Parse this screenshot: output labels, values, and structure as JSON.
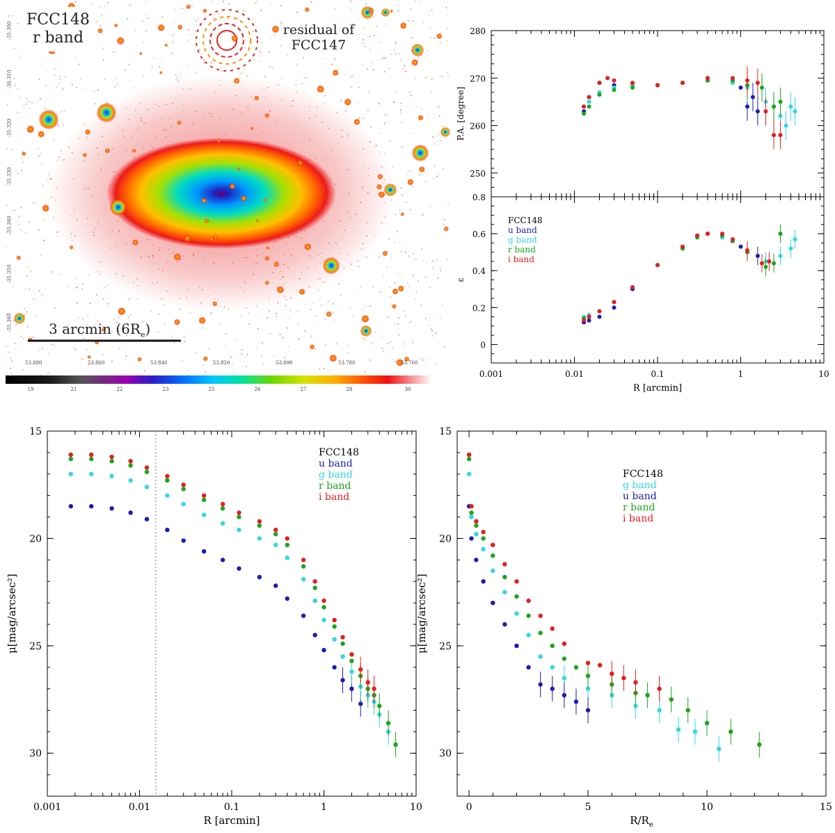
{
  "image_panel": {
    "galaxy_label_line1": "FCC148",
    "galaxy_label_line2": "r band",
    "residual_line1": "residual of",
    "residual_line2": "FCC147",
    "scale_bar_text": "3 arcmin (6R",
    "scale_bar_sub": "e",
    "scale_bar_close": ")",
    "ra_ticks": [
      "53.880",
      "53.860",
      "53.840",
      "53.820",
      "53.800",
      "53.780",
      "53.760"
    ],
    "dec_ticks": [
      "-35.300",
      "-35.310",
      "-35.320",
      "-35.330",
      "-35.340",
      "-35.350",
      "-35.360"
    ],
    "colorbar_ticks": [
      "19",
      "21",
      "22",
      "23",
      "25",
      "26",
      "27",
      "28",
      "30"
    ]
  },
  "chart_data": [
    {
      "type": "scatter",
      "name": "position-angle",
      "title": "",
      "xlabel": "",
      "ylabel": "P.A. [degree]",
      "xscale": "log",
      "xlim": [
        0.001,
        10
      ],
      "ylim": [
        245,
        280
      ],
      "yticks": [
        "250",
        "260",
        "270",
        "280"
      ],
      "series": [
        {
          "name": "u band",
          "color": "#1b1bb5",
          "x": [
            0.013,
            0.015,
            0.02,
            0.03,
            0.05,
            0.1,
            0.2,
            0.4,
            0.8,
            1.0,
            1.2,
            1.4,
            1.6
          ],
          "y": [
            263,
            266,
            269,
            268.5,
            268.5,
            268.5,
            269,
            269.5,
            269.5,
            268,
            264,
            266,
            263
          ]
        },
        {
          "name": "g band",
          "color": "#30d8e0",
          "x": [
            0.013,
            0.015,
            0.02,
            0.03,
            0.05,
            0.1,
            0.2,
            0.4,
            0.8,
            1.2,
            2.0,
            2.5,
            3.0,
            3.5,
            4.0,
            4.5
          ],
          "y": [
            264,
            265,
            267,
            268,
            268.5,
            268.5,
            269,
            269.5,
            269,
            268,
            265,
            264,
            262,
            260,
            264,
            263
          ]
        },
        {
          "name": "r band",
          "color": "#1aa61a",
          "x": [
            0.013,
            0.015,
            0.02,
            0.03,
            0.05,
            0.1,
            0.2,
            0.4,
            0.8,
            1.2,
            1.8,
            2.5,
            3.0
          ],
          "y": [
            262.5,
            264,
            266.5,
            267.5,
            268,
            268.5,
            269,
            269.5,
            269.5,
            268.5,
            268,
            264,
            265
          ]
        },
        {
          "name": "i band",
          "color": "#e81c1c",
          "x": [
            0.013,
            0.015,
            0.02,
            0.025,
            0.03,
            0.05,
            0.1,
            0.2,
            0.4,
            0.8,
            1.2,
            1.6,
            2.0,
            2.5,
            3.0
          ],
          "y": [
            264,
            266,
            269,
            270,
            269.5,
            269,
            268.5,
            269,
            270,
            270,
            269.5,
            269,
            263,
            258,
            258
          ]
        }
      ]
    },
    {
      "type": "scatter",
      "name": "ellipticity",
      "title": "",
      "xlabel": "R [arcmin]",
      "ylabel": "ε",
      "xscale": "log",
      "xlim": [
        0.001,
        10
      ],
      "ylim": [
        -0.1,
        0.8
      ],
      "xticks": [
        "0.001",
        "0.01",
        "0.1",
        "1",
        "10"
      ],
      "yticks": [
        "0",
        "0.2",
        "0.4",
        "0.6",
        "0.8"
      ],
      "legend": {
        "title": "FCC148",
        "entries": [
          "u band",
          "g band",
          "r band",
          "i band"
        ],
        "position": "left-middle"
      },
      "series": [
        {
          "name": "u band",
          "color": "#1b1bb5",
          "x": [
            0.013,
            0.015,
            0.02,
            0.03,
            0.05,
            0.1,
            0.2,
            0.3,
            0.4,
            0.6,
            0.8,
            1.0,
            1.2,
            1.6
          ],
          "y": [
            0.12,
            0.13,
            0.15,
            0.2,
            0.3,
            0.43,
            0.52,
            0.58,
            0.6,
            0.58,
            0.56,
            0.53,
            0.5,
            0.48
          ]
        },
        {
          "name": "g band",
          "color": "#30d8e0",
          "x": [
            0.013,
            0.015,
            0.02,
            0.03,
            0.05,
            0.1,
            0.2,
            0.3,
            0.4,
            0.6,
            0.8,
            1.2,
            2.0,
            3.0,
            4.0,
            4.5
          ],
          "y": [
            0.15,
            0.16,
            0.18,
            0.23,
            0.31,
            0.43,
            0.52,
            0.58,
            0.6,
            0.58,
            0.56,
            0.5,
            0.45,
            0.48,
            0.52,
            0.57
          ]
        },
        {
          "name": "r band",
          "color": "#1aa61a",
          "x": [
            0.013,
            0.015,
            0.02,
            0.03,
            0.05,
            0.1,
            0.2,
            0.3,
            0.4,
            0.6,
            0.8,
            1.2,
            2.0,
            2.5,
            3.0
          ],
          "y": [
            0.14,
            0.15,
            0.18,
            0.23,
            0.31,
            0.43,
            0.52,
            0.58,
            0.6,
            0.59,
            0.56,
            0.5,
            0.42,
            0.44,
            0.6
          ]
        },
        {
          "name": "i band",
          "color": "#e81c1c",
          "x": [
            0.013,
            0.015,
            0.02,
            0.03,
            0.05,
            0.1,
            0.2,
            0.3,
            0.4,
            0.6,
            0.8,
            1.2,
            1.8,
            2.2
          ],
          "y": [
            0.13,
            0.15,
            0.18,
            0.23,
            0.31,
            0.43,
            0.53,
            0.59,
            0.6,
            0.6,
            0.57,
            0.51,
            0.44,
            0.45
          ]
        }
      ]
    },
    {
      "type": "scatter",
      "name": "surface-brightness-vs-r",
      "title": "",
      "xlabel": "R [arcmin]",
      "ylabel": "μ[mag/arcsec²]",
      "xscale": "log",
      "xlim": [
        0.001,
        10
      ],
      "ylim": [
        32,
        15
      ],
      "xticks": [
        "0.001",
        "0.01",
        "0.1",
        "1",
        "10"
      ],
      "yticks": [
        "15",
        "20",
        "25",
        "30"
      ],
      "vline": 0.015,
      "legend": {
        "title": "FCC148",
        "entries": [
          "u band",
          "g band",
          "r band",
          "i band"
        ],
        "position": "top-right"
      },
      "series": [
        {
          "name": "u band",
          "color": "#1b1bb5",
          "x": [
            0.0018,
            0.003,
            0.005,
            0.008,
            0.012,
            0.02,
            0.03,
            0.05,
            0.08,
            0.12,
            0.2,
            0.3,
            0.4,
            0.6,
            0.8,
            1.0,
            1.3,
            1.6,
            2.0,
            2.5
          ],
          "y": [
            18.5,
            18.5,
            18.6,
            18.8,
            19.1,
            19.6,
            20.1,
            20.6,
            21.0,
            21.4,
            21.8,
            22.2,
            22.8,
            23.6,
            24.5,
            25.2,
            26.0,
            26.6,
            27.0,
            27.7
          ]
        },
        {
          "name": "g band",
          "color": "#30d8e0",
          "x": [
            0.0018,
            0.003,
            0.005,
            0.008,
            0.012,
            0.02,
            0.03,
            0.05,
            0.08,
            0.12,
            0.2,
            0.3,
            0.4,
            0.6,
            0.8,
            1.0,
            1.3,
            1.6,
            2.0,
            2.5,
            3.0,
            3.5,
            4.0,
            5.0
          ],
          "y": [
            17.0,
            17.0,
            17.1,
            17.3,
            17.6,
            18.0,
            18.4,
            18.9,
            19.3,
            19.6,
            20.0,
            20.3,
            20.9,
            21.9,
            22.9,
            23.8,
            24.7,
            25.5,
            26.2,
            26.9,
            27.3,
            27.6,
            28.2,
            29.0
          ]
        },
        {
          "name": "r band",
          "color": "#1aa61a",
          "x": [
            0.0018,
            0.003,
            0.005,
            0.008,
            0.012,
            0.02,
            0.03,
            0.05,
            0.08,
            0.12,
            0.2,
            0.3,
            0.4,
            0.6,
            0.8,
            1.0,
            1.3,
            1.6,
            2.0,
            2.5,
            3.0,
            3.5,
            4.0,
            5.0,
            6.0
          ],
          "y": [
            16.3,
            16.3,
            16.4,
            16.6,
            16.9,
            17.3,
            17.7,
            18.2,
            18.6,
            19.0,
            19.4,
            19.8,
            20.3,
            21.3,
            22.3,
            23.2,
            24.1,
            24.9,
            25.7,
            26.4,
            27.0,
            27.3,
            27.8,
            28.6,
            29.6
          ]
        },
        {
          "name": "i band",
          "color": "#e81c1c",
          "x": [
            0.0018,
            0.003,
            0.005,
            0.008,
            0.012,
            0.02,
            0.03,
            0.05,
            0.08,
            0.12,
            0.2,
            0.3,
            0.4,
            0.6,
            0.8,
            1.0,
            1.3,
            1.6,
            2.0,
            2.5,
            3.0,
            3.5
          ],
          "y": [
            16.1,
            16.1,
            16.2,
            16.4,
            16.7,
            17.1,
            17.5,
            18.0,
            18.4,
            18.8,
            19.2,
            19.6,
            20.0,
            21.0,
            22.0,
            22.9,
            23.8,
            24.6,
            25.4,
            26.1,
            26.7,
            27.0
          ]
        }
      ]
    },
    {
      "type": "scatter",
      "name": "surface-brightness-vs-r-re",
      "title": "",
      "xlabel": "R/R",
      "xlabel_sub": "e",
      "ylabel": "μ[mag/arcsec²]",
      "xscale": "linear",
      "xlim": [
        -0.5,
        15
      ],
      "ylim": [
        32,
        15
      ],
      "xticks": [
        "0",
        "5",
        "10",
        "15"
      ],
      "yticks": [
        "15",
        "20",
        "25",
        "30"
      ],
      "legend": {
        "title": "FCC148",
        "entries": [
          "g band",
          "u band",
          "r band",
          "i band"
        ],
        "position": "top-center"
      },
      "series": [
        {
          "name": "g band",
          "color": "#30d8e0",
          "x": [
            0.0,
            0.1,
            0.3,
            0.6,
            1.0,
            1.5,
            2.0,
            2.5,
            3.0,
            3.5,
            4.0,
            5.0,
            6.0,
            7.0,
            8.0,
            8.8,
            9.5,
            10.5
          ],
          "y": [
            17.0,
            19.0,
            19.8,
            20.5,
            21.5,
            22.5,
            23.5,
            24.5,
            25.5,
            26.0,
            26.5,
            27.0,
            27.3,
            27.8,
            28.0,
            28.9,
            29.0,
            29.8
          ]
        },
        {
          "name": "u band",
          "color": "#1b1bb5",
          "x": [
            0.0,
            0.1,
            0.3,
            0.6,
            1.0,
            1.5,
            2.0,
            2.5,
            3.0,
            3.5,
            4.0,
            4.5,
            5.0
          ],
          "y": [
            18.5,
            20.0,
            21.0,
            22.0,
            23.0,
            24.0,
            25.0,
            26.0,
            26.8,
            27.0,
            27.3,
            27.6,
            28.0
          ]
        },
        {
          "name": "r band",
          "color": "#1aa61a",
          "x": [
            0.0,
            0.1,
            0.3,
            0.6,
            1.0,
            1.5,
            2.0,
            2.5,
            3.0,
            3.5,
            4.0,
            4.5,
            5.0,
            6.0,
            7.0,
            7.5,
            8.5,
            9.2,
            10.0,
            11.0,
            12.2
          ],
          "y": [
            16.3,
            18.8,
            19.4,
            20.0,
            20.8,
            21.8,
            22.7,
            23.6,
            24.4,
            25.0,
            25.6,
            26.0,
            26.4,
            26.8,
            27.2,
            27.3,
            27.5,
            28.0,
            28.6,
            29.0,
            29.6
          ]
        },
        {
          "name": "i band",
          "color": "#e81c1c",
          "x": [
            0.0,
            0.1,
            0.3,
            0.6,
            1.0,
            1.5,
            2.0,
            2.5,
            3.0,
            3.5,
            4.0,
            5.0,
            5.5,
            6.0,
            6.5,
            7.0,
            8.0
          ],
          "y": [
            16.1,
            18.5,
            19.2,
            19.7,
            20.3,
            21.2,
            22.0,
            22.9,
            23.6,
            24.2,
            24.9,
            25.8,
            25.9,
            26.3,
            26.5,
            26.7,
            27.0
          ]
        }
      ]
    }
  ]
}
